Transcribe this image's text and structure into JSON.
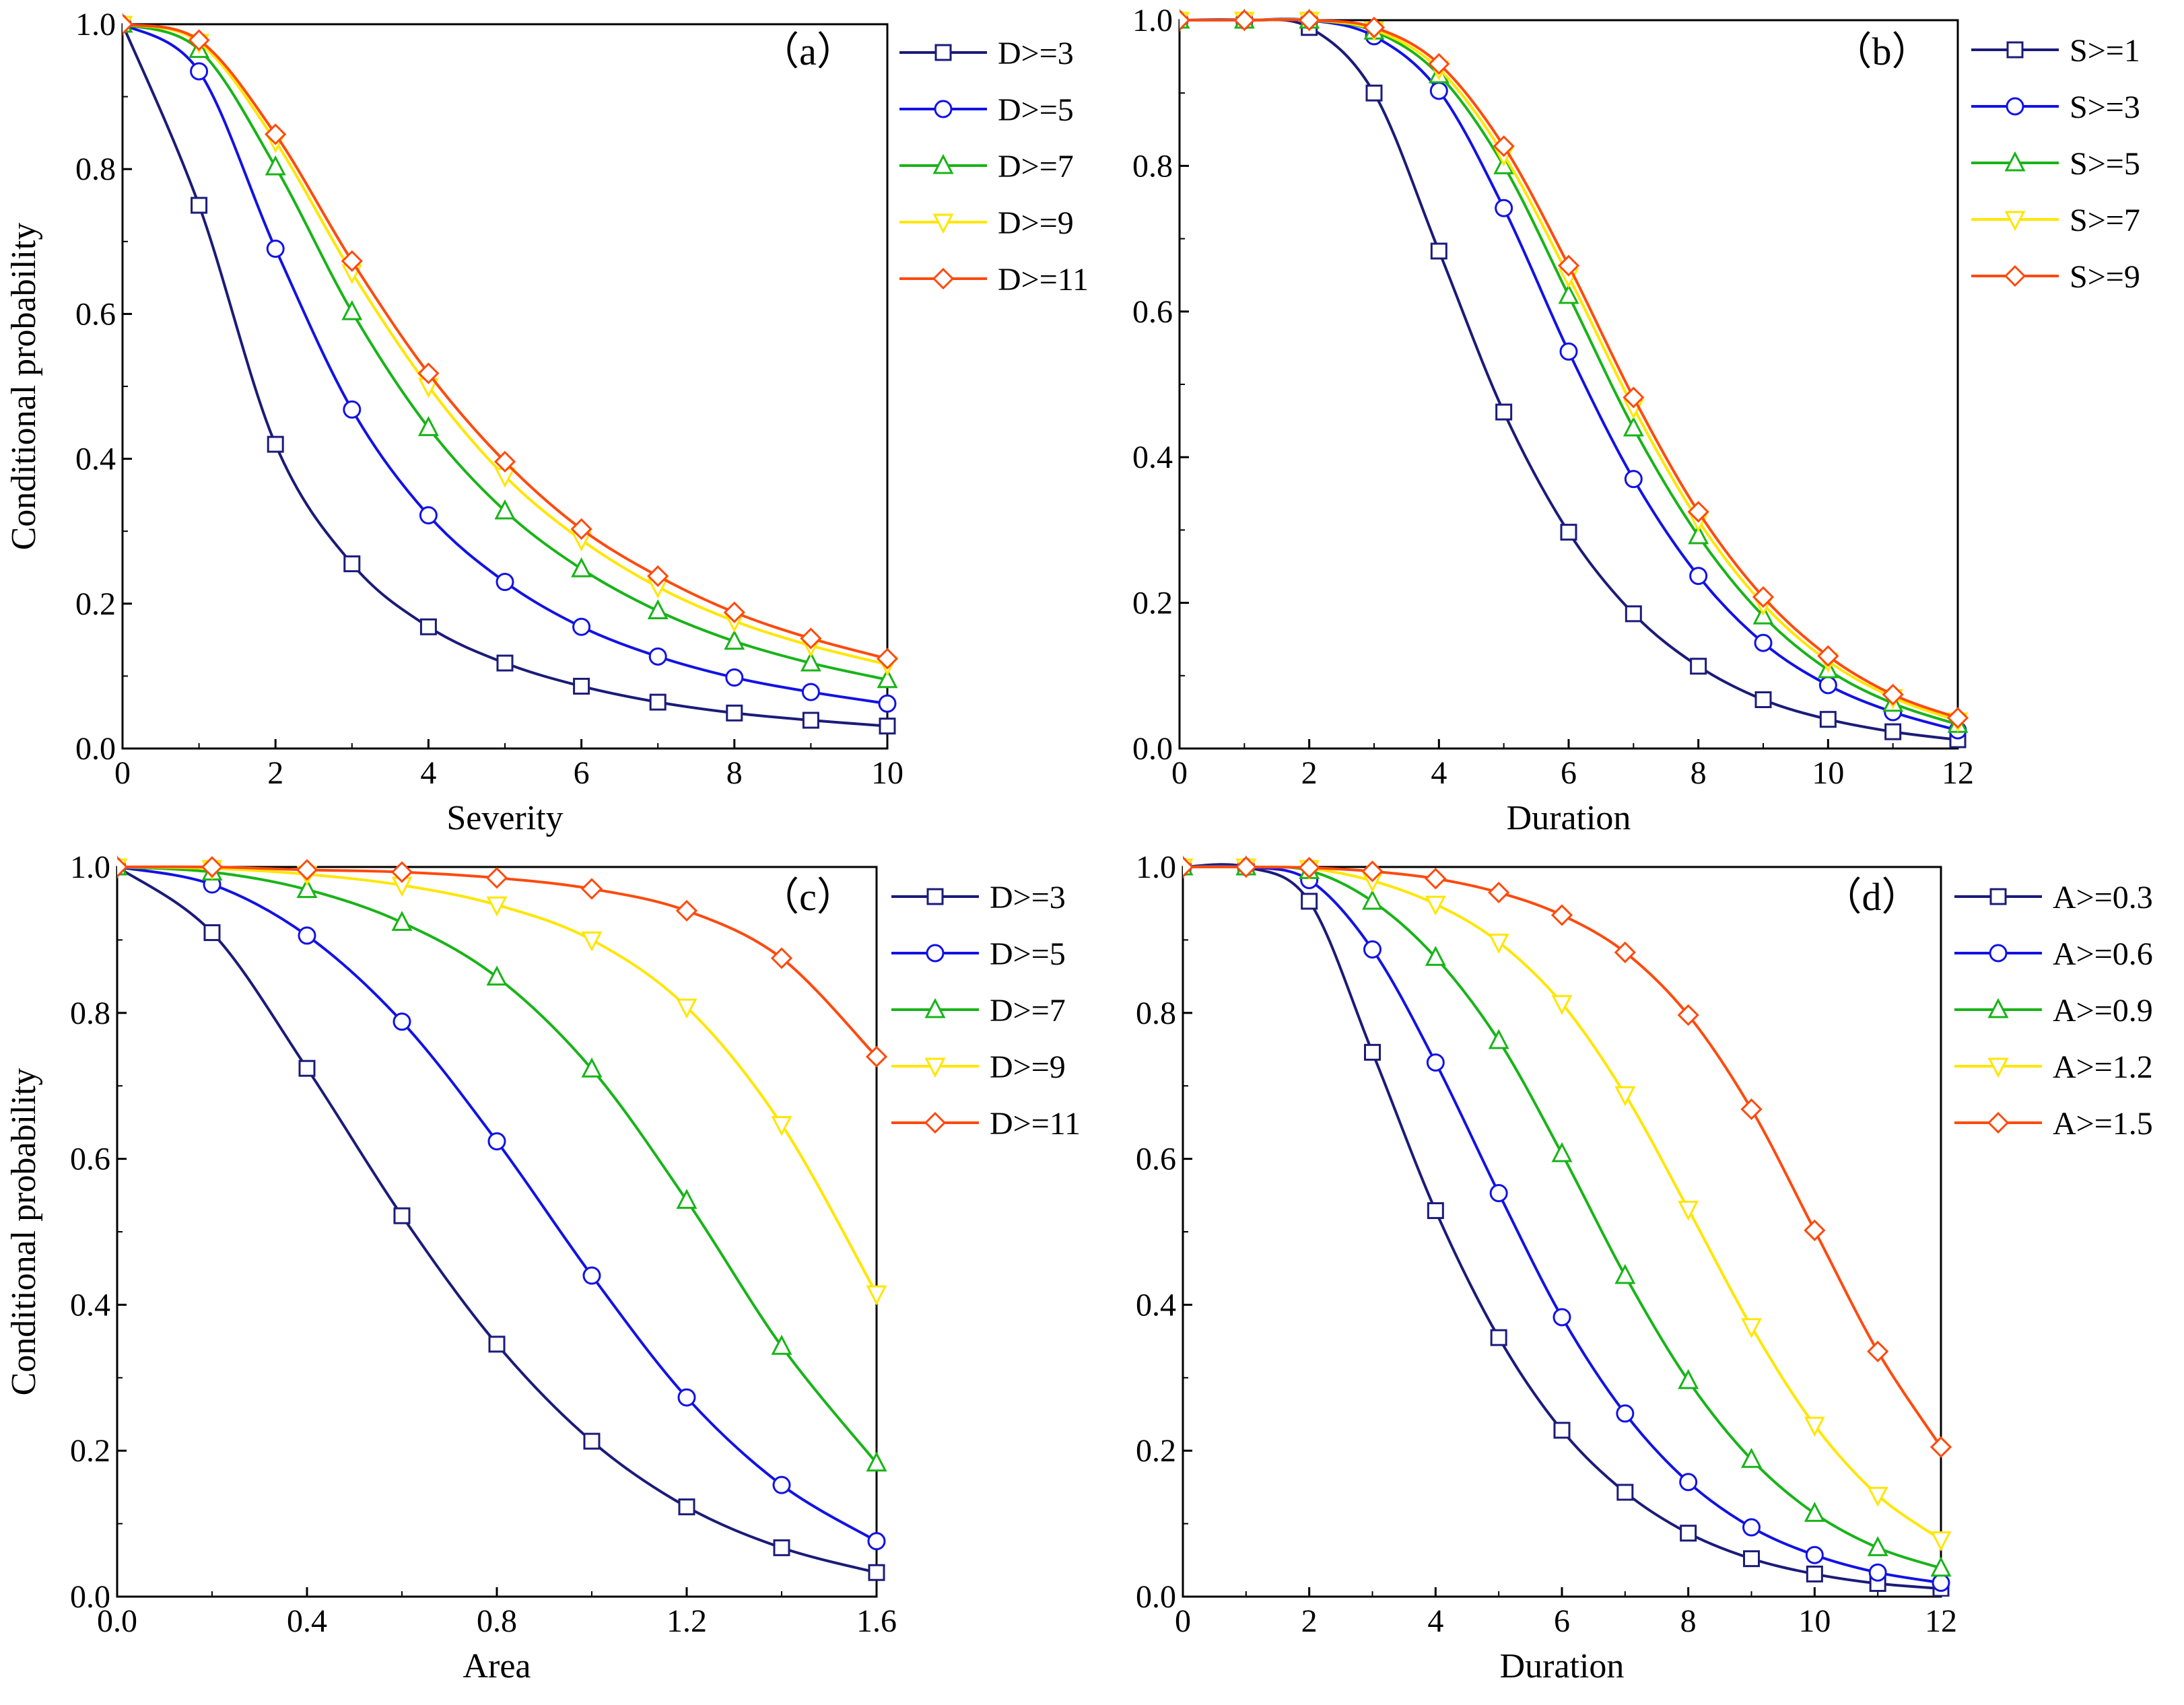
{
  "colors": {
    "series": [
      "#1b1b7a",
      "#1212e6",
      "#18b418",
      "#ffe600",
      "#ff4a0e"
    ],
    "axis": "#000000",
    "background": "#ffffff"
  },
  "chart_data": [
    {
      "panel_label": "（a）",
      "type": "line",
      "title": "",
      "xlabel": "Severity",
      "ylabel": "Conditional probability",
      "xlim": [
        0,
        10
      ],
      "ylim": [
        0,
        1
      ],
      "xticks": [
        0,
        2,
        4,
        6,
        8,
        10
      ],
      "xtick_labels": [
        "0",
        "2",
        "4",
        "6",
        "8",
        "10"
      ],
      "yticks": [
        0,
        0.2,
        0.4,
        0.6,
        0.8,
        1.0
      ],
      "ytick_labels": [
        "0.0",
        "0.2",
        "0.4",
        "0.6",
        "0.8",
        "1.0"
      ],
      "legend_position": "right-outside-top",
      "x": [
        0,
        1,
        2,
        3,
        4,
        5,
        6,
        7,
        8,
        9,
        10
      ],
      "series": [
        {
          "name": "D>=3",
          "marker": "square",
          "values": [
            1.0,
            0.75,
            0.42,
            0.255,
            0.168,
            0.118,
            0.086,
            0.064,
            0.049,
            0.039,
            0.031
          ]
        },
        {
          "name": "D>=5",
          "marker": "circle",
          "values": [
            1.0,
            0.935,
            0.69,
            0.468,
            0.322,
            0.23,
            0.168,
            0.127,
            0.098,
            0.078,
            0.062
          ]
        },
        {
          "name": "D>=7",
          "marker": "triangle-up",
          "values": [
            1.0,
            0.965,
            0.803,
            0.603,
            0.443,
            0.328,
            0.248,
            0.19,
            0.148,
            0.118,
            0.095
          ]
        },
        {
          "name": "D>=9",
          "marker": "triangle-down",
          "values": [
            1.0,
            0.975,
            0.838,
            0.657,
            0.5,
            0.376,
            0.288,
            0.223,
            0.176,
            0.142,
            0.116
          ]
        },
        {
          "name": "D>=11",
          "marker": "diamond",
          "values": [
            1.0,
            0.978,
            0.848,
            0.673,
            0.518,
            0.396,
            0.303,
            0.238,
            0.188,
            0.152,
            0.124
          ]
        }
      ]
    },
    {
      "panel_label": "（b）",
      "type": "line",
      "title": "",
      "xlabel": "Duration",
      "ylabel": "",
      "xlim": [
        0,
        12
      ],
      "ylim": [
        0,
        1
      ],
      "xticks": [
        0,
        2,
        4,
        6,
        8,
        10,
        12
      ],
      "xtick_labels": [
        "0",
        "2",
        "4",
        "6",
        "8",
        "10",
        "12"
      ],
      "yticks": [
        0,
        0.2,
        0.4,
        0.6,
        0.8,
        1.0
      ],
      "ytick_labels": [
        "0.0",
        "0.2",
        "0.4",
        "0.6",
        "0.8",
        "1.0"
      ],
      "legend_position": "right-outside-top",
      "x": [
        0,
        1,
        2,
        3,
        4,
        5,
        6,
        7,
        8,
        9,
        10,
        11,
        12
      ],
      "series": [
        {
          "name": "S>=1",
          "marker": "square",
          "values": [
            1.0,
            1.0,
            0.99,
            0.9,
            0.683,
            0.462,
            0.297,
            0.185,
            0.113,
            0.067,
            0.04,
            0.023,
            0.012
          ]
        },
        {
          "name": "S>=3",
          "marker": "circle",
          "values": [
            1.0,
            1.0,
            1.0,
            0.978,
            0.903,
            0.742,
            0.545,
            0.37,
            0.237,
            0.145,
            0.087,
            0.05,
            0.025
          ]
        },
        {
          "name": "S>=5",
          "marker": "triangle-up",
          "values": [
            1.0,
            1.0,
            1.0,
            0.985,
            0.925,
            0.8,
            0.622,
            0.44,
            0.292,
            0.182,
            0.108,
            0.062,
            0.033
          ]
        },
        {
          "name": "S>=7",
          "marker": "triangle-down",
          "values": [
            1.0,
            1.0,
            1.0,
            0.987,
            0.933,
            0.815,
            0.648,
            0.468,
            0.313,
            0.198,
            0.12,
            0.07,
            0.038
          ]
        },
        {
          "name": "S>=9",
          "marker": "diamond",
          "values": [
            1.0,
            1.0,
            1.0,
            0.99,
            0.94,
            0.827,
            0.663,
            0.482,
            0.325,
            0.208,
            0.127,
            0.074,
            0.042
          ]
        }
      ]
    },
    {
      "panel_label": "（c）",
      "type": "line",
      "title": "",
      "xlabel": "Area",
      "ylabel": "Conditional probability",
      "xlim": [
        0,
        1.6
      ],
      "ylim": [
        0,
        1
      ],
      "xticks": [
        0,
        0.4,
        0.8,
        1.2,
        1.6
      ],
      "xtick_labels": [
        "0.0",
        "0.4",
        "0.8",
        "1.2",
        "1.6"
      ],
      "yticks": [
        0,
        0.2,
        0.4,
        0.6,
        0.8,
        1.0
      ],
      "ytick_labels": [
        "0.0",
        "0.2",
        "0.4",
        "0.6",
        "0.8",
        "1.0"
      ],
      "legend_position": "right-outside-top",
      "x": [
        0,
        0.2,
        0.4,
        0.6,
        0.8,
        1.0,
        1.2,
        1.4,
        1.6
      ],
      "series": [
        {
          "name": "D>=3",
          "marker": "square",
          "values": [
            1.0,
            0.91,
            0.724,
            0.522,
            0.346,
            0.213,
            0.123,
            0.067,
            0.033
          ]
        },
        {
          "name": "D>=5",
          "marker": "circle",
          "values": [
            1.0,
            0.976,
            0.906,
            0.788,
            0.624,
            0.44,
            0.273,
            0.153,
            0.076
          ]
        },
        {
          "name": "D>=7",
          "marker": "triangle-up",
          "values": [
            1.0,
            0.993,
            0.969,
            0.924,
            0.849,
            0.723,
            0.543,
            0.343,
            0.183
          ]
        },
        {
          "name": "D>=9",
          "marker": "triangle-down",
          "values": [
            1.0,
            0.998,
            0.99,
            0.975,
            0.948,
            0.9,
            0.808,
            0.647,
            0.415
          ]
        },
        {
          "name": "D>=11",
          "marker": "diamond",
          "values": [
            1.0,
            1.0,
            0.996,
            0.993,
            0.985,
            0.97,
            0.94,
            0.875,
            0.74
          ]
        }
      ]
    },
    {
      "panel_label": "（d）",
      "type": "line",
      "title": "",
      "xlabel": "Duration",
      "ylabel": "",
      "xlim": [
        0,
        12
      ],
      "ylim": [
        0,
        1
      ],
      "xticks": [
        0,
        2,
        4,
        6,
        8,
        10,
        12
      ],
      "xtick_labels": [
        "0",
        "2",
        "4",
        "6",
        "8",
        "10",
        "12"
      ],
      "yticks": [
        0,
        0.2,
        0.4,
        0.6,
        0.8,
        1.0
      ],
      "ytick_labels": [
        "0.0",
        "0.2",
        "0.4",
        "0.6",
        "0.8",
        "1.0"
      ],
      "legend_position": "right-outside-top",
      "x": [
        0,
        1,
        2,
        3,
        4,
        5,
        6,
        7,
        8,
        9,
        10,
        11,
        12
      ],
      "series": [
        {
          "name": "A>=0.3",
          "marker": "square",
          "values": [
            1.0,
            1.0,
            0.953,
            0.746,
            0.529,
            0.355,
            0.228,
            0.143,
            0.087,
            0.052,
            0.031,
            0.018,
            0.011
          ]
        },
        {
          "name": "A>=0.6",
          "marker": "circle",
          "values": [
            1.0,
            1.0,
            0.982,
            0.887,
            0.732,
            0.553,
            0.383,
            0.251,
            0.157,
            0.095,
            0.057,
            0.033,
            0.019
          ]
        },
        {
          "name": "A>=0.9",
          "marker": "triangle-up",
          "values": [
            1.0,
            1.0,
            0.995,
            0.953,
            0.876,
            0.762,
            0.607,
            0.44,
            0.296,
            0.188,
            0.114,
            0.067,
            0.039
          ]
        },
        {
          "name": "A>=1.2",
          "marker": "triangle-down",
          "values": [
            1.0,
            1.0,
            0.998,
            0.981,
            0.949,
            0.897,
            0.813,
            0.688,
            0.531,
            0.37,
            0.235,
            0.139,
            0.078
          ]
        },
        {
          "name": "A>=1.5",
          "marker": "diamond",
          "values": [
            1.0,
            1.0,
            0.999,
            0.994,
            0.984,
            0.965,
            0.934,
            0.883,
            0.797,
            0.668,
            0.502,
            0.336,
            0.205
          ]
        }
      ]
    }
  ]
}
